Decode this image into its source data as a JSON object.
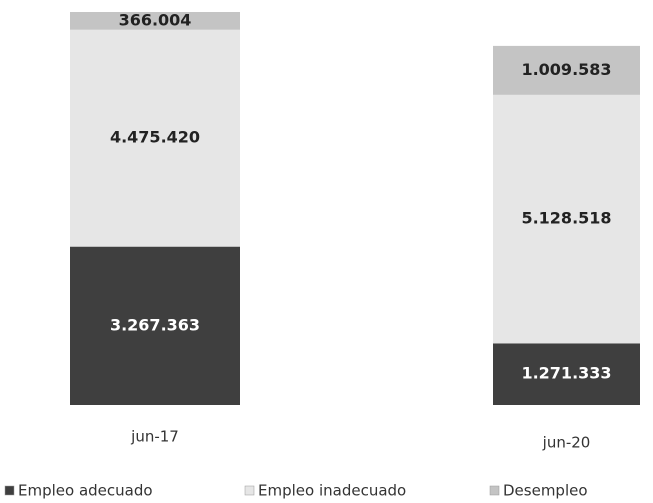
{
  "chart_data": {
    "type": "stacked_bar",
    "categories": [
      "jun-17",
      "jun-20"
    ],
    "series": [
      {
        "name": "Empleo adecuado",
        "color": "#3f3f3f",
        "values": [
          3267363,
          1271333
        ],
        "value_labels": [
          "3.267.363",
          "1.271.333"
        ]
      },
      {
        "name": "Empleo inadecuado",
        "color": "#e6e6e6",
        "values": [
          4475420,
          5128518
        ],
        "value_labels": [
          "4.475.420",
          "5.128.518"
        ]
      },
      {
        "name": "Desempleo",
        "color": "#c4c4c4",
        "values": [
          366004,
          1009583
        ],
        "value_labels": [
          "366.004",
          "1.009.583"
        ]
      }
    ],
    "legend": "bottom"
  }
}
